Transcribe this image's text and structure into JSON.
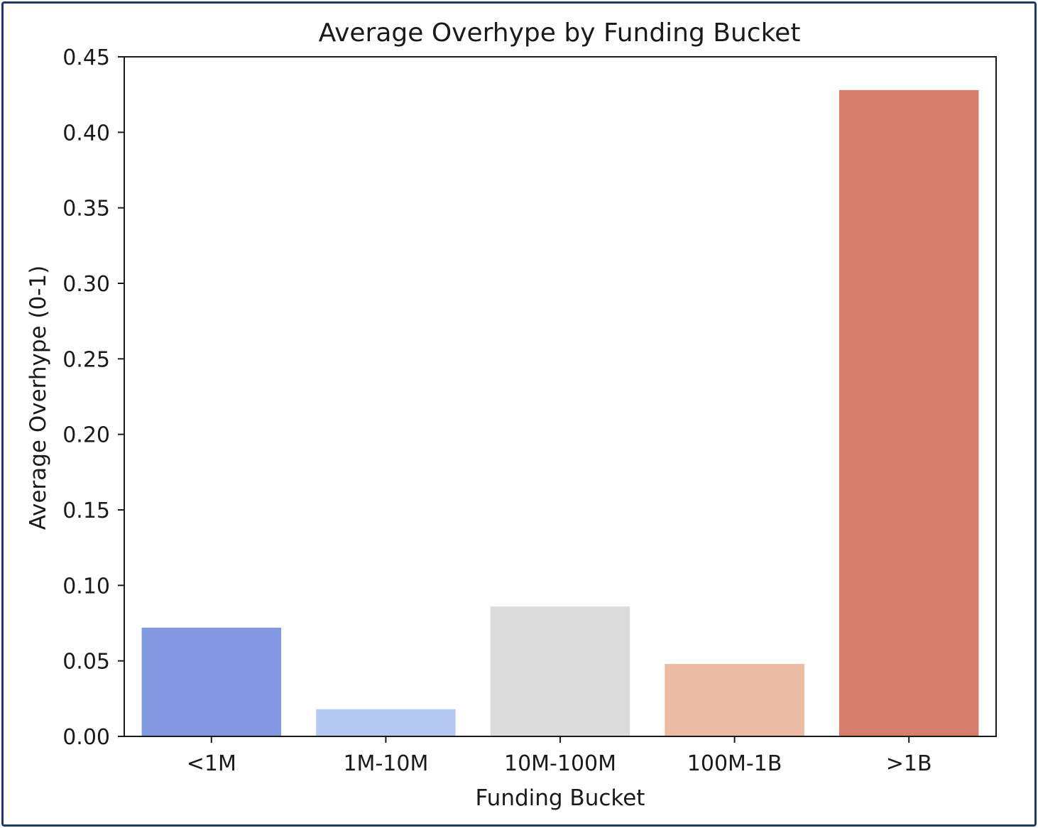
{
  "chart_data": {
    "type": "bar",
    "title": "Average Overhype by Funding Bucket",
    "xlabel": "Funding Bucket",
    "ylabel": "Average Overhype (0-1)",
    "categories": [
      "<1M",
      "1M-10M",
      "10M-100M",
      "100M-1B",
      ">1B"
    ],
    "values": [
      0.072,
      0.018,
      0.086,
      0.048,
      0.428
    ],
    "colors": [
      "#8299e2",
      "#b6c9f3",
      "#dcdcdc",
      "#ebbba4",
      "#d57f6b"
    ],
    "ylim": [
      0,
      0.45
    ],
    "yticks": [
      "0.00",
      "0.05",
      "0.10",
      "0.15",
      "0.20",
      "0.25",
      "0.30",
      "0.35",
      "0.40",
      "0.45"
    ],
    "grid": false
  }
}
